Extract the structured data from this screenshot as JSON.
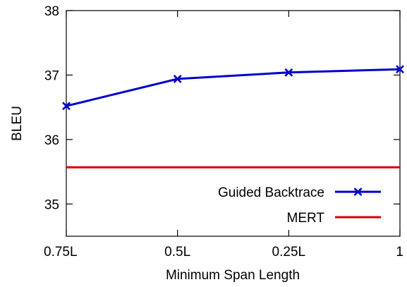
{
  "chart_data": {
    "type": "line",
    "categories": [
      "0.75L",
      "0.5L",
      "0.25L",
      "1"
    ],
    "xlabel": "Minimum Span Length",
    "ylabel": "BLEU",
    "ylim": [
      34.5,
      38
    ],
    "yticks": [
      "35",
      "36",
      "37",
      "38"
    ],
    "grid": false,
    "legend": "bottom-right",
    "series": [
      {
        "name": "Guided Backtrace",
        "values": [
          36.52,
          36.94,
          37.04,
          37.09
        ],
        "color": "#0000cc",
        "marker": "x"
      },
      {
        "name": "MERT",
        "values": [
          35.57,
          35.57,
          35.57,
          35.57
        ],
        "color": "#dd0000",
        "marker": "none"
      }
    ]
  }
}
